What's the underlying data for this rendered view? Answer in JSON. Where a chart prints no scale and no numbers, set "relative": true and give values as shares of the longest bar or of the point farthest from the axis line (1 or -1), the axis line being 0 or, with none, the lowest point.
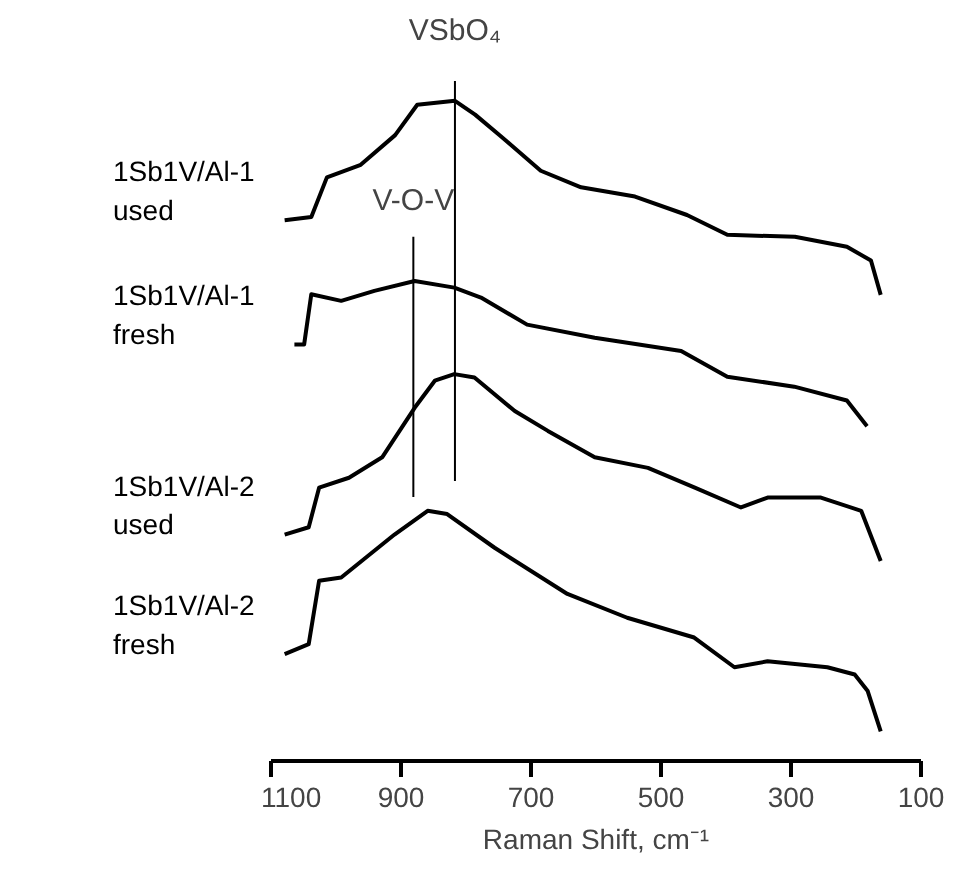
{
  "chart_data": {
    "type": "line",
    "relative": true,
    "xlabel": "Raman Shift, cm⁻¹",
    "xlim": [
      1100,
      100
    ],
    "xticks": [
      1100,
      900,
      700,
      500,
      300,
      100
    ],
    "grid": false,
    "series": [
      {
        "name": "1Sb1V/Al-1\nused",
        "color": "#000000",
        "x": [
          1079,
          1038,
          1014,
          962,
          909,
          875,
          817,
          786,
          746,
          685,
          623,
          540,
          460,
          398,
          294,
          214,
          177,
          162
        ],
        "values": [
          0.819,
          0.824,
          0.884,
          0.903,
          0.948,
          0.994,
          1.0,
          0.979,
          0.946,
          0.894,
          0.869,
          0.855,
          0.827,
          0.797,
          0.794,
          0.779,
          0.758,
          0.706
        ]
      },
      {
        "name": "1Sb1V/Al-1\nfresh",
        "color": "#000000",
        "x": [
          1064,
          1049,
          1038,
          992,
          941,
          879,
          818,
          777,
          706,
          602,
          469,
          398,
          295,
          214,
          183
        ],
        "values": [
          0.631,
          0.631,
          0.707,
          0.697,
          0.712,
          0.727,
          0.717,
          0.702,
          0.661,
          0.641,
          0.621,
          0.582,
          0.567,
          0.546,
          0.507
        ]
      },
      {
        "name": "1Sb1V/Al-2\nused",
        "color": "#000000",
        "x": [
          1079,
          1042,
          1026,
          980,
          929,
          879,
          848,
          818,
          787,
          725,
          674,
          602,
          520,
          448,
          377,
          336,
          254,
          192,
          162
        ],
        "values": [
          0.343,
          0.354,
          0.414,
          0.429,
          0.46,
          0.535,
          0.576,
          0.586,
          0.581,
          0.53,
          0.5,
          0.46,
          0.444,
          0.414,
          0.384,
          0.399,
          0.399,
          0.379,
          0.303
        ]
      },
      {
        "name": "1Sb1V/Al-2\nfresh",
        "color": "#000000",
        "x": [
          1079,
          1042,
          1026,
          992,
          910,
          859,
          829,
          756,
          644,
          552,
          449,
          387,
          336,
          244,
          202,
          182,
          162
        ],
        "values": [
          0.162,
          0.177,
          0.273,
          0.278,
          0.343,
          0.379,
          0.374,
          0.323,
          0.253,
          0.217,
          0.187,
          0.142,
          0.151,
          0.142,
          0.131,
          0.106,
          0.045
        ]
      }
    ],
    "ref_lines": [
      {
        "axis": "x",
        "value": 817,
        "label": "VSbO₄",
        "color": "#000000"
      },
      {
        "axis": "x",
        "value": 881,
        "label": "V-O-V",
        "color": "#000000"
      }
    ]
  }
}
